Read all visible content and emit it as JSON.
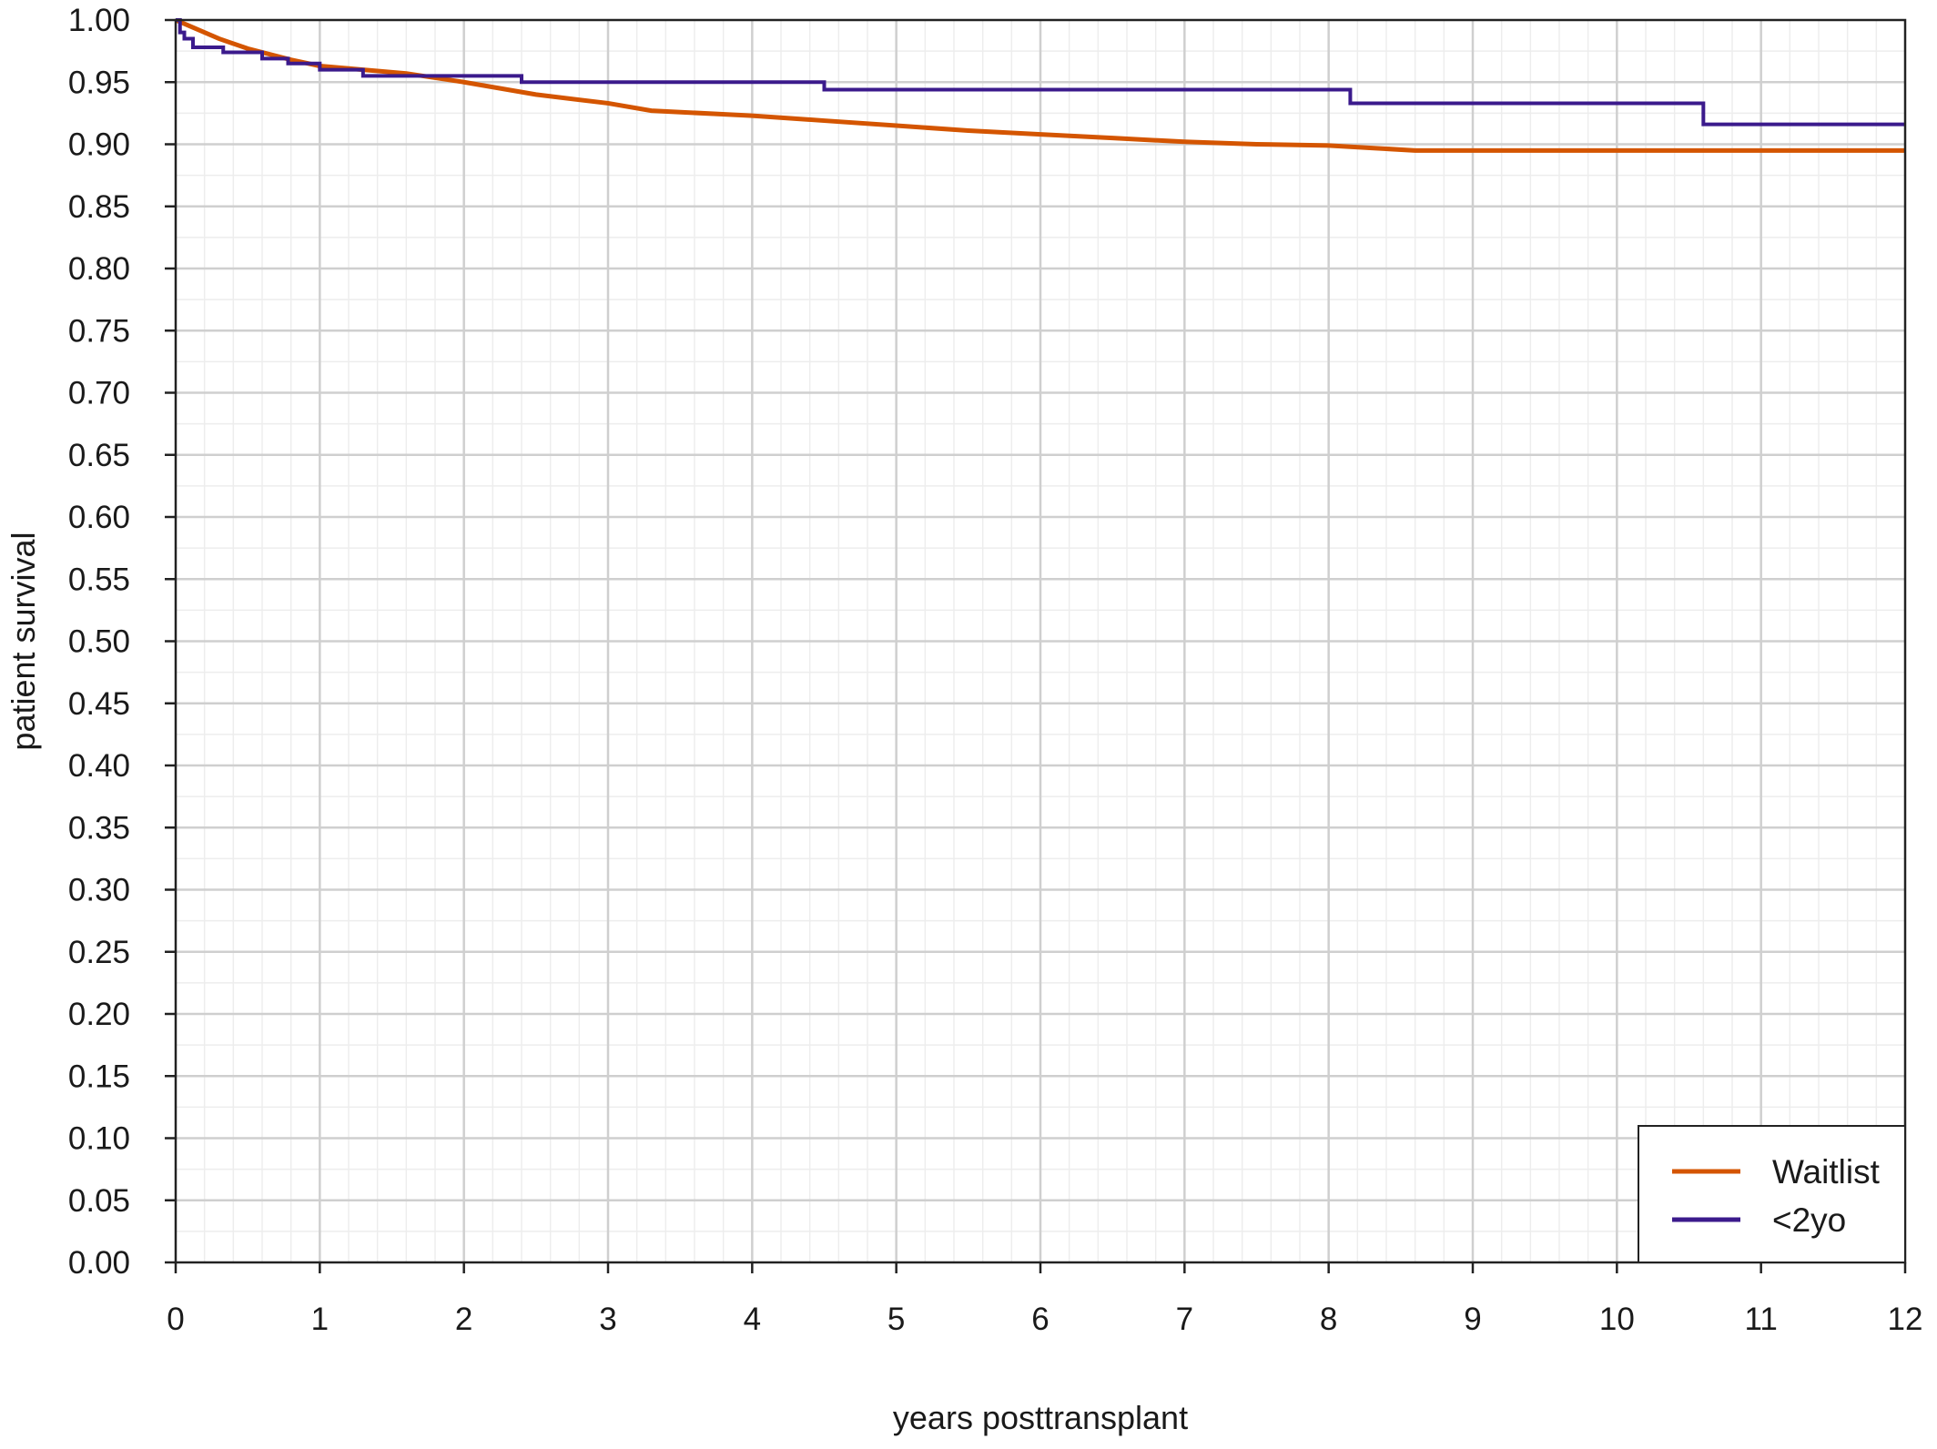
{
  "chart_data": {
    "type": "line",
    "title": "",
    "xlabel": "years posttransplant",
    "ylabel": "patient survival",
    "xlim": [
      0,
      12
    ],
    "ylim": [
      0,
      1
    ],
    "x_ticks": [
      "0",
      "1",
      "2",
      "3",
      "4",
      "5",
      "6",
      "7",
      "8",
      "9",
      "10",
      "11",
      "12"
    ],
    "y_ticks": [
      "0.00",
      "0.05",
      "0.10",
      "0.15",
      "0.20",
      "0.25",
      "0.30",
      "0.35",
      "0.40",
      "0.45",
      "0.50",
      "0.55",
      "0.60",
      "0.65",
      "0.70",
      "0.75",
      "0.80",
      "0.85",
      "0.90",
      "0.95",
      "1.00"
    ],
    "grid": true,
    "legend_position": "bottom-right",
    "series": [
      {
        "name": "Waitlist",
        "color": "#d45500",
        "step": false,
        "x": [
          0,
          0.1,
          0.3,
          0.5,
          0.8,
          1.0,
          1.3,
          1.6,
          2.0,
          2.5,
          3.0,
          3.3,
          4.0,
          4.5,
          5.0,
          5.5,
          6.0,
          6.5,
          7.0,
          7.5,
          8.0,
          8.3,
          8.6,
          9.0,
          10.0,
          11.0,
          12.0
        ],
        "y": [
          1.0,
          0.995,
          0.985,
          0.977,
          0.968,
          0.963,
          0.96,
          0.957,
          0.95,
          0.94,
          0.933,
          0.927,
          0.923,
          0.919,
          0.915,
          0.911,
          0.908,
          0.905,
          0.902,
          0.9,
          0.899,
          0.897,
          0.895,
          0.895,
          0.895,
          0.895,
          0.895
        ]
      },
      {
        "name": "<2yo",
        "color": "#3b1a8c",
        "step": true,
        "x": [
          0,
          0.03,
          0.06,
          0.12,
          0.33,
          0.6,
          0.78,
          1.0,
          1.3,
          1.65,
          2.4,
          4.5,
          8.15,
          10.6,
          12.0
        ],
        "y": [
          1.0,
          0.99,
          0.985,
          0.978,
          0.974,
          0.969,
          0.965,
          0.96,
          0.955,
          0.955,
          0.95,
          0.944,
          0.933,
          0.916,
          0.916
        ]
      }
    ]
  }
}
